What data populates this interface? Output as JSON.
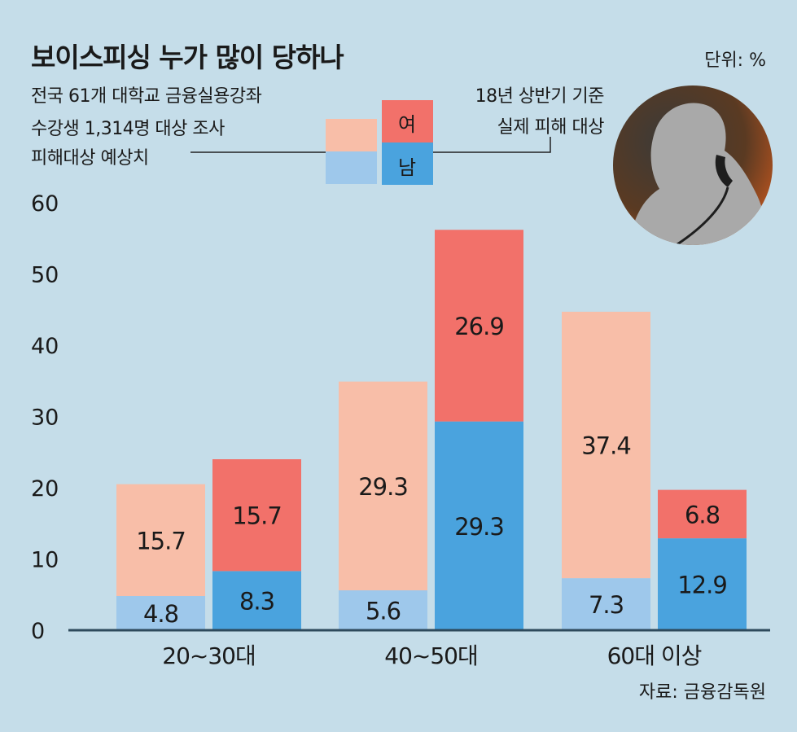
{
  "header": {
    "title": "보이스피싱 누가 많이 당하나",
    "unit": "단위: %"
  },
  "legend": {
    "left_lines": [
      "전국 61개 대학교 금융실용강좌",
      "수강생 1,314명 대상 조사",
      "피해대상 예상치"
    ],
    "right_lines": [
      "18년 상반기 기준",
      "실제 피해 대상"
    ],
    "female_label": "여",
    "male_label": "남"
  },
  "footer": {
    "source": "자료: 금융감독원"
  },
  "colors": {
    "background": "#c5dde9",
    "expected_female": "#f8bea8",
    "expected_male": "#9ec8eb",
    "actual_female": "#f2716a",
    "actual_male": "#4aa3de",
    "axis": "#2e4a5c"
  },
  "chart_data": {
    "type": "bar",
    "stacked": true,
    "title": "보이스피싱 누가 많이 당하나",
    "ylabel": "",
    "ylim": [
      0,
      60
    ],
    "yticks": [
      0,
      10,
      20,
      30,
      40,
      50,
      60
    ],
    "categories": [
      "20~30대",
      "40~50대",
      "60대 이상"
    ],
    "groups": [
      {
        "name": "피해대상 예상치",
        "series": [
          {
            "name": "남",
            "values": [
              4.8,
              5.6,
              7.3
            ]
          },
          {
            "name": "여",
            "values": [
              15.7,
              29.3,
              37.4
            ]
          }
        ]
      },
      {
        "name": "실제 피해 대상",
        "series": [
          {
            "name": "남",
            "values": [
              8.3,
              29.3,
              12.9
            ]
          },
          {
            "name": "여",
            "values": [
              15.7,
              26.9,
              6.8
            ]
          }
        ]
      }
    ]
  }
}
